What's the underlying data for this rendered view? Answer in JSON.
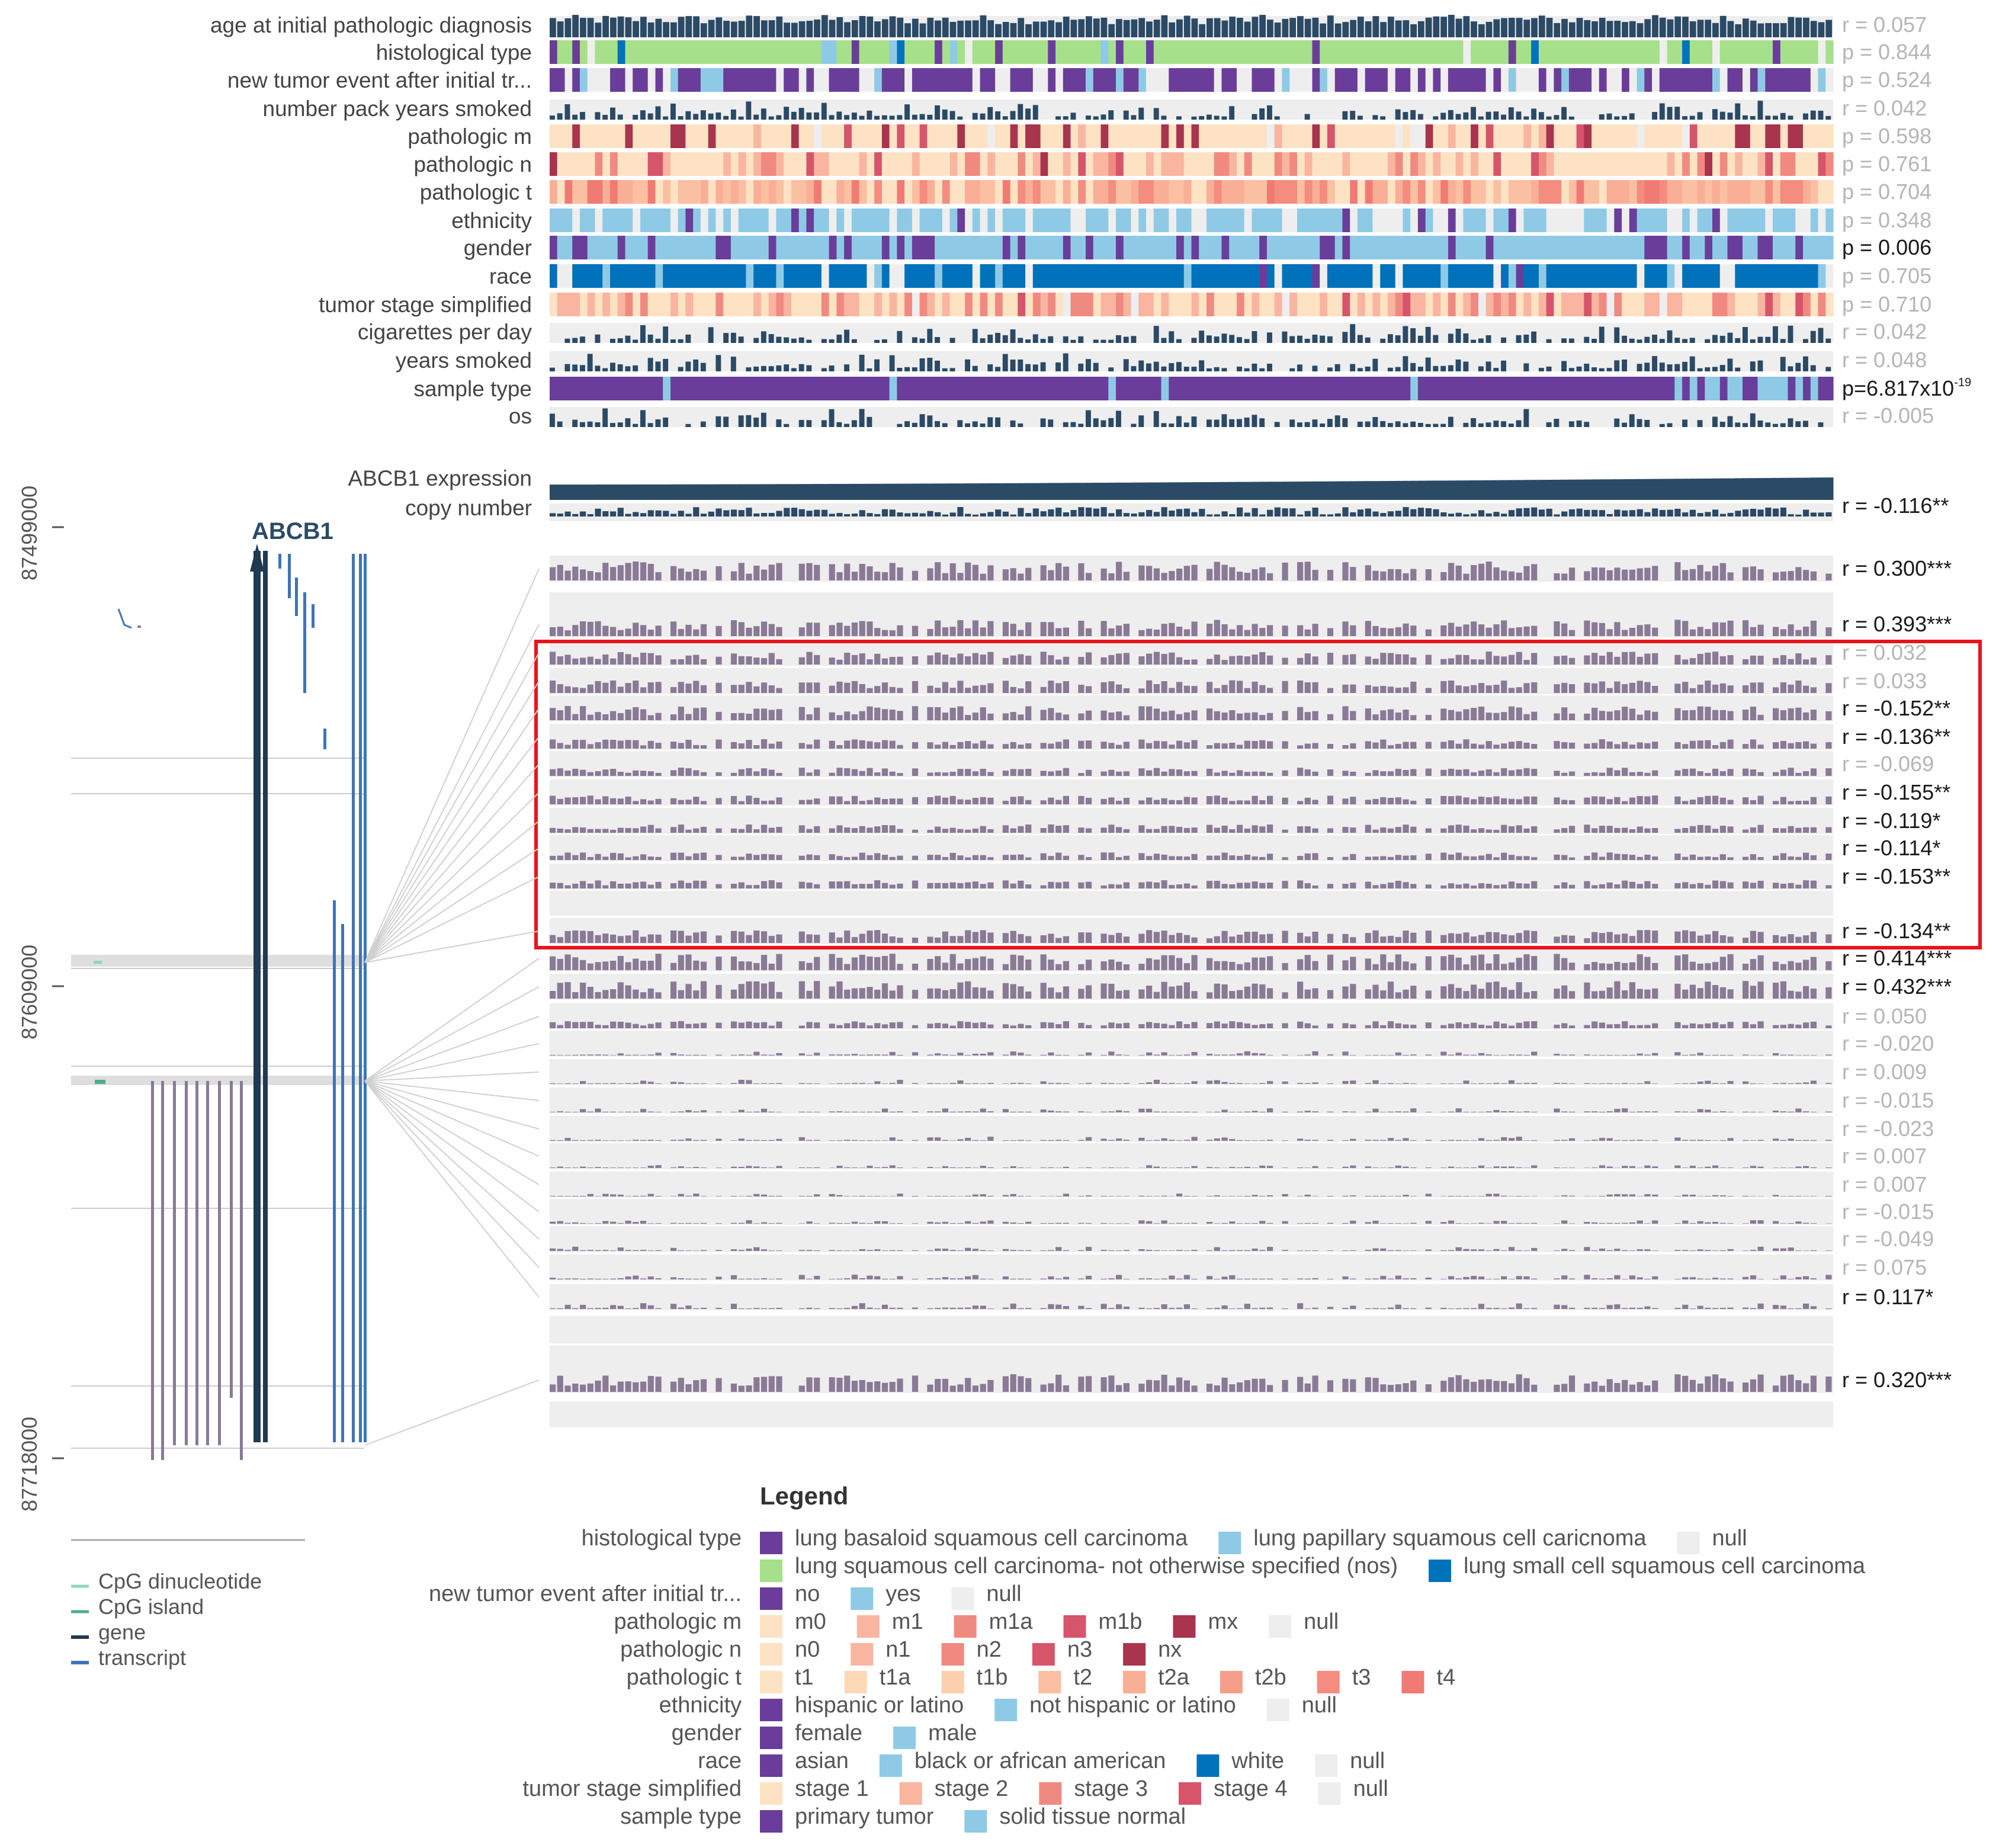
{
  "chart_data": {
    "type": "heatmap",
    "title": "Legend",
    "annotation_tracks": [
      {
        "label": "age at initial pathologic diagnosis",
        "kind": "bar",
        "stat": "r = 0.057",
        "significant": false
      },
      {
        "label": "histological type",
        "kind": "cat",
        "palette": "hist",
        "stat": "p = 0.844",
        "significant": false
      },
      {
        "label": "new tumor event after initial tr...",
        "kind": "cat",
        "palette": "newtumor",
        "stat": "p = 0.524",
        "significant": false
      },
      {
        "label": "number pack years smoked",
        "kind": "bar",
        "stat": "r = 0.042",
        "significant": false
      },
      {
        "label": "pathologic m",
        "kind": "cat",
        "palette": "pm",
        "stat": "p = 0.598",
        "significant": false
      },
      {
        "label": "pathologic n",
        "kind": "cat",
        "palette": "pn",
        "stat": "p = 0.761",
        "significant": false
      },
      {
        "label": "pathologic t",
        "kind": "cat",
        "palette": "pt",
        "stat": "p = 0.704",
        "significant": false
      },
      {
        "label": "ethnicity",
        "kind": "cat",
        "palette": "eth",
        "stat": "p = 0.348",
        "significant": false
      },
      {
        "label": "gender",
        "kind": "cat",
        "palette": "gender",
        "stat": "p = 0.006",
        "significant": true
      },
      {
        "label": "race",
        "kind": "cat",
        "palette": "race",
        "stat": "p = 0.705",
        "significant": false
      },
      {
        "label": "tumor stage simplified",
        "kind": "cat",
        "palette": "stage",
        "stat": "p = 0.710",
        "significant": false
      },
      {
        "label": "cigarettes per day",
        "kind": "bar",
        "stat": "r = 0.042",
        "significant": false
      },
      {
        "label": "years smoked",
        "kind": "bar",
        "stat": "r = 0.048",
        "significant": false
      },
      {
        "label": "sample type",
        "kind": "cat",
        "palette": "sample",
        "stat": "p=6.817x10",
        "stat_exp": "-19",
        "significant": true
      },
      {
        "label": "os",
        "kind": "bar",
        "stat": "r = -0.005",
        "significant": false
      }
    ],
    "expression_track": {
      "label": "ABCB1 expression"
    },
    "copy_number_track": {
      "label": "copy number",
      "stat": "r = -0.116**",
      "significant": true
    },
    "methylation_probes": [
      {
        "stat": "r = 0.300***",
        "significant": true
      },
      {
        "stat": "r = 0.393***",
        "significant": true
      },
      {
        "stat": "r = 0.032",
        "significant": false
      },
      {
        "stat": "r = 0.033",
        "significant": false
      },
      {
        "stat": "r = -0.152**",
        "significant": true
      },
      {
        "stat": "r = -0.136**",
        "significant": true
      },
      {
        "stat": "r = -0.069",
        "significant": false
      },
      {
        "stat": "r = -0.155**",
        "significant": true
      },
      {
        "stat": "r = -0.119*",
        "significant": true
      },
      {
        "stat": "r = -0.114*",
        "significant": true
      },
      {
        "stat": "r = -0.153**",
        "significant": true
      },
      {
        "stat": "r = -0.134**",
        "significant": true
      },
      {
        "stat": "r = 0.414***",
        "significant": true
      },
      {
        "stat": "r = 0.432***",
        "significant": true
      },
      {
        "stat": "r = 0.050",
        "significant": false
      },
      {
        "stat": "r = -0.020",
        "significant": false
      },
      {
        "stat": "r = 0.009",
        "significant": false
      },
      {
        "stat": "r = -0.015",
        "significant": false
      },
      {
        "stat": "r = -0.023",
        "significant": false
      },
      {
        "stat": "r = 0.007",
        "significant": false
      },
      {
        "stat": "r = 0.007",
        "significant": false
      },
      {
        "stat": "r = -0.015",
        "significant": false
      },
      {
        "stat": "r = -0.049",
        "significant": false
      },
      {
        "stat": "r = 0.075",
        "significant": false
      },
      {
        "stat": "r = 0.117*",
        "significant": true
      },
      {
        "stat": "r = 0.320***",
        "significant": true
      }
    ],
    "genome_axis": {
      "ticks": [
        "87499000",
        "87609000",
        "87718000"
      ]
    },
    "gene_label": "ABCB1",
    "highlight": {
      "from_probe": 2,
      "to_probe": 11,
      "color": "#e8141c"
    },
    "track_legend": [
      {
        "label": "CpG dinucleotide",
        "color": "#8fd6bf"
      },
      {
        "label": "CpG island",
        "color": "#4caf8a"
      },
      {
        "label": "gene",
        "color": "#1f3a52"
      },
      {
        "label": "transcript",
        "color": "#3f74b8"
      }
    ],
    "legend": [
      {
        "label": "histological type",
        "items": [
          {
            "text": "lung basaloid squamous cell carcinoma",
            "color": "#6a3d9a"
          },
          {
            "text": "lung papillary squamous cell caricnoma",
            "color": "#8ecae6"
          },
          {
            "text": "null",
            "color": "#eeeeee"
          }
        ]
      },
      {
        "label": "",
        "items": [
          {
            "text": "lung squamous cell carcinoma- not otherwise specified (nos)",
            "color": "#a6e08a"
          },
          {
            "text": "lung small cell squamous cell carcinoma",
            "color": "#0072bb"
          }
        ]
      },
      {
        "label": "new tumor event after initial tr...",
        "items": [
          {
            "text": "no",
            "color": "#6a3d9a"
          },
          {
            "text": "yes",
            "color": "#8ecae6"
          },
          {
            "text": "null",
            "color": "#eeeeee"
          }
        ]
      },
      {
        "label": "pathologic m",
        "items": [
          {
            "text": "m0",
            "color": "#fde2c4"
          },
          {
            "text": "m1",
            "color": "#f9b5a0"
          },
          {
            "text": "m1a",
            "color": "#f08a80"
          },
          {
            "text": "m1b",
            "color": "#d6556a"
          },
          {
            "text": "mx",
            "color": "#a8344d"
          },
          {
            "text": "null",
            "color": "#eeeeee"
          }
        ]
      },
      {
        "label": "pathologic n",
        "items": [
          {
            "text": "n0",
            "color": "#fde2c4"
          },
          {
            "text": "n1",
            "color": "#f9b5a0"
          },
          {
            "text": "n2",
            "color": "#f08a80"
          },
          {
            "text": "n3",
            "color": "#d6556a"
          },
          {
            "text": "nx",
            "color": "#a8344d"
          }
        ]
      },
      {
        "label": "pathologic t",
        "items": [
          {
            "text": "t1",
            "color": "#fde2c4"
          },
          {
            "text": "t1a",
            "color": "#fdd9b5"
          },
          {
            "text": "t1b",
            "color": "#fcd0ad"
          },
          {
            "text": "t2",
            "color": "#fbbfa2"
          },
          {
            "text": "t2a",
            "color": "#f9ae96"
          },
          {
            "text": "t2b",
            "color": "#f79e8b"
          },
          {
            "text": "t3",
            "color": "#f48c80"
          },
          {
            "text": "t4",
            "color": "#f07b75"
          }
        ]
      },
      {
        "label": "ethnicity",
        "items": [
          {
            "text": "hispanic or latino",
            "color": "#6a3d9a"
          },
          {
            "text": "not hispanic or latino",
            "color": "#8ecae6"
          },
          {
            "text": "null",
            "color": "#eeeeee"
          }
        ]
      },
      {
        "label": "gender",
        "items": [
          {
            "text": "female",
            "color": "#6a3d9a"
          },
          {
            "text": "male",
            "color": "#8ecae6"
          }
        ]
      },
      {
        "label": "race",
        "items": [
          {
            "text": "asian",
            "color": "#6a3d9a"
          },
          {
            "text": "black or african american",
            "color": "#8ecae6"
          },
          {
            "text": "white",
            "color": "#0072bb"
          },
          {
            "text": "null",
            "color": "#eeeeee"
          }
        ]
      },
      {
        "label": "tumor stage simplified",
        "items": [
          {
            "text": "stage 1",
            "color": "#fde2c4"
          },
          {
            "text": "stage 2",
            "color": "#f9b5a0"
          },
          {
            "text": "stage 3",
            "color": "#f08a80"
          },
          {
            "text": "stage 4",
            "color": "#d6556a"
          },
          {
            "text": "null",
            "color": "#eeeeee"
          }
        ]
      },
      {
        "label": "sample type",
        "items": [
          {
            "text": "primary tumor",
            "color": "#6a3d9a"
          },
          {
            "text": "solid tissue normal",
            "color": "#8ecae6"
          }
        ]
      }
    ],
    "colors": {
      "bar": "#2b4a66",
      "probe": "#8a7a96",
      "null": "#eeeeee",
      "significant_text": "#1a1a1a",
      "nonsignificant_text": "#b5b5b5"
    }
  }
}
